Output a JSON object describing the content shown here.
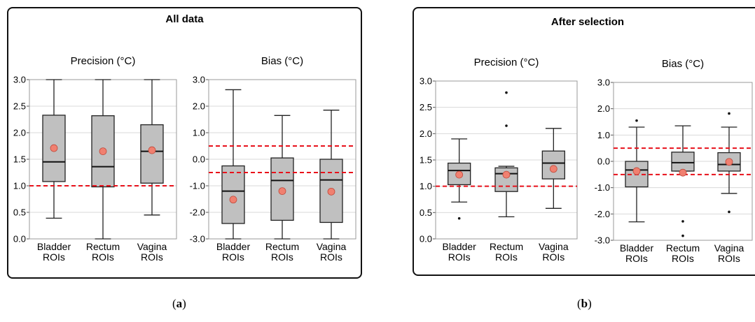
{
  "panels": [
    {
      "letter_open": "(",
      "letter": "a",
      "letter_close": ")",
      "title": "All data",
      "charts": [
        {
          "type": "box",
          "title": "Precision (°C)",
          "ylim": [
            0.0,
            3.0
          ],
          "yticks": [
            "0.0",
            "0.5",
            "1.0",
            "1.5",
            "2.0",
            "2.5",
            "3.0"
          ],
          "ytick_values": [
            0,
            0.5,
            1,
            1.5,
            2,
            2.5,
            3
          ],
          "grid": true,
          "reference_lines": [
            1.0
          ],
          "categories": [
            [
              "Bladder",
              "ROIs"
            ],
            [
              "Rectum",
              "ROIs"
            ],
            [
              "Vagina",
              "ROIs"
            ]
          ],
          "boxes": [
            {
              "whisker_low": 0.39,
              "q1": 1.08,
              "median": 1.45,
              "q3": 2.33,
              "whisker_high": 3.0,
              "mean": 1.71,
              "outliers": []
            },
            {
              "whisker_low": 0.0,
              "q1": 0.98,
              "median": 1.36,
              "q3": 2.32,
              "whisker_high": 3.0,
              "mean": 1.65,
              "outliers": []
            },
            {
              "whisker_low": 0.45,
              "q1": 1.05,
              "median": 1.65,
              "q3": 2.15,
              "whisker_high": 3.0,
              "mean": 1.67,
              "outliers": []
            }
          ]
        },
        {
          "type": "box",
          "title": "Bias (°C)",
          "ylim": [
            -3.0,
            3.0
          ],
          "yticks": [
            "-3.0",
            "-2.0",
            "-1.0",
            "0.0",
            "1.0",
            "2.0",
            "3.0"
          ],
          "ytick_values": [
            -3,
            -2,
            -1,
            0,
            1,
            2,
            3
          ],
          "grid": true,
          "reference_lines": [
            0.5,
            -0.5
          ],
          "categories": [
            [
              "Bladder",
              "ROIs"
            ],
            [
              "Rectum",
              "ROIs"
            ],
            [
              "Vagina",
              "ROIs"
            ]
          ],
          "boxes": [
            {
              "whisker_low": -3.0,
              "q1": -2.42,
              "median": -1.2,
              "q3": -0.25,
              "whisker_high": 2.62,
              "mean": -1.52,
              "outliers": []
            },
            {
              "whisker_low": -3.0,
              "q1": -2.3,
              "median": -0.8,
              "q3": 0.05,
              "whisker_high": 1.65,
              "mean": -1.2,
              "outliers": []
            },
            {
              "whisker_low": -3.0,
              "q1": -2.38,
              "median": -0.78,
              "q3": 0.0,
              "whisker_high": 1.85,
              "mean": -1.22,
              "outliers": []
            }
          ]
        }
      ]
    },
    {
      "letter_open": "(",
      "letter": "b",
      "letter_close": ")",
      "title": "After selection",
      "charts": [
        {
          "type": "box",
          "title": "Precision (°C)",
          "ylim": [
            0.0,
            3.0
          ],
          "yticks": [
            "0.0",
            "0.5",
            "1.0",
            "1.5",
            "2.0",
            "2.5",
            "3.0"
          ],
          "ytick_values": [
            0,
            0.5,
            1,
            1.5,
            2,
            2.5,
            3
          ],
          "grid": true,
          "reference_lines": [
            1.0
          ],
          "categories": [
            [
              "Bladder",
              "ROIs"
            ],
            [
              "Rectum",
              "ROIs"
            ],
            [
              "Vagina",
              "ROIs"
            ]
          ],
          "boxes": [
            {
              "whisker_low": 0.7,
              "q1": 1.03,
              "median": 1.3,
              "q3": 1.44,
              "whisker_high": 1.9,
              "mean": 1.22,
              "outliers": [
                0.39
              ]
            },
            {
              "whisker_low": 0.42,
              "q1": 0.9,
              "median": 1.24,
              "q3": 1.35,
              "whisker_high": 1.38,
              "mean": 1.22,
              "outliers": [
                2.15,
                2.78
              ]
            },
            {
              "whisker_low": 0.58,
              "q1": 1.14,
              "median": 1.44,
              "q3": 1.67,
              "whisker_high": 2.1,
              "mean": 1.33,
              "outliers": []
            }
          ]
        },
        {
          "type": "box",
          "title": "Bias (°C)",
          "ylim": [
            -3.0,
            3.0
          ],
          "yticks": [
            "-3.0",
            "-2.0",
            "-1.0",
            "0.0",
            "1.0",
            "2.0",
            "3.0"
          ],
          "ytick_values": [
            -3,
            -2,
            -1,
            0,
            1,
            2,
            3
          ],
          "grid": true,
          "reference_lines": [
            0.5,
            -0.5
          ],
          "categories": [
            [
              "Bladder",
              "ROIs"
            ],
            [
              "Rectum",
              "ROIs"
            ],
            [
              "Vagina",
              "ROIs"
            ]
          ],
          "boxes": [
            {
              "whisker_low": -2.3,
              "q1": -0.97,
              "median": -0.33,
              "q3": 0.0,
              "whisker_high": 1.3,
              "mean": -0.37,
              "outliers": [
                1.55
              ]
            },
            {
              "whisker_low": -0.37,
              "q1": -0.37,
              "median": -0.05,
              "q3": 0.35,
              "whisker_high": 1.35,
              "mean": -0.43,
              "outliers": [
                -2.28,
                -2.83
              ]
            },
            {
              "whisker_low": -1.22,
              "q1": -0.37,
              "median": -0.12,
              "q3": 0.33,
              "whisker_high": 1.3,
              "mean": -0.02,
              "outliers": [
                1.82,
                -1.92
              ]
            }
          ]
        }
      ]
    }
  ],
  "colors": {
    "box_fill": "#c0c0c0",
    "mean_marker": "#f08070",
    "mean_edge": "#c04a3c",
    "reference_line": "#e8101a",
    "grid": "#d9d9d9",
    "frame": "#111111"
  }
}
